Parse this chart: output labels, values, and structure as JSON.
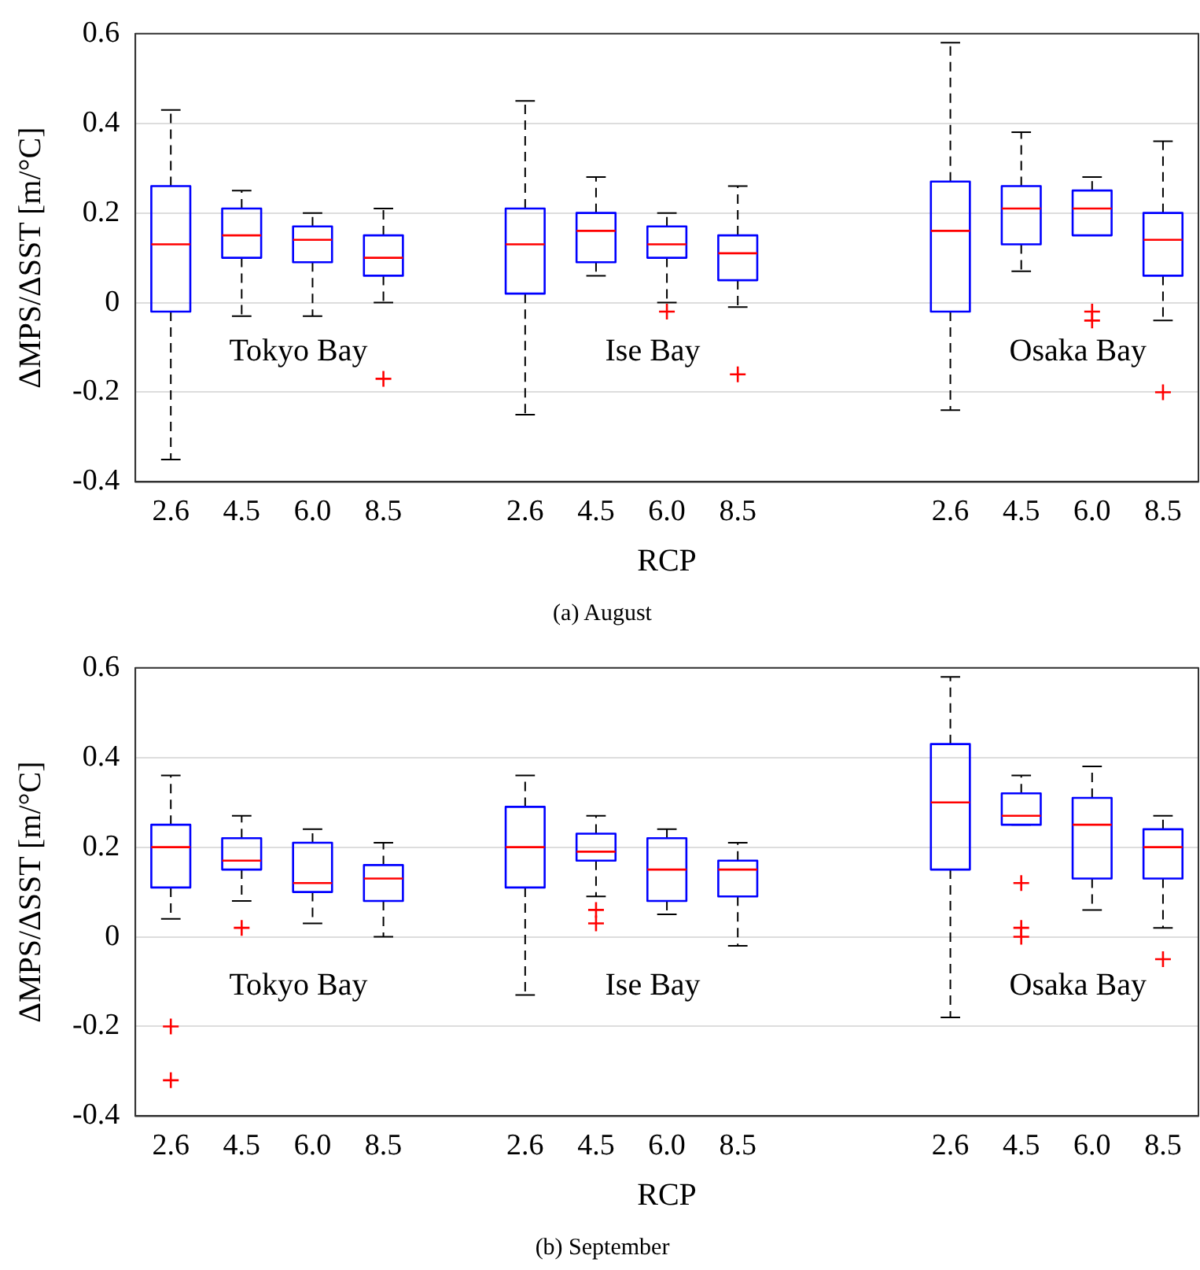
{
  "chart_data": [
    {
      "type": "box",
      "title": "(a) August",
      "xlabel": "RCP",
      "ylabel": "ΔMPS/ΔSST [m/°C]",
      "color": "#0000ff",
      "categories": [
        "2.6",
        "4.5",
        "6.0",
        "8.5",
        null,
        "2.6",
        "4.5",
        "6.0",
        "8.5",
        null,
        null,
        "2.6",
        "4.5",
        "6.0",
        "8.5"
      ],
      "boxes": [
        {
          "low": -0.35,
          "q1": -0.02,
          "median": 0.13,
          "q3": 0.26,
          "high": 0.43
        },
        {
          "low": -0.03,
          "q1": 0.1,
          "median": 0.15,
          "q3": 0.21,
          "high": 0.25
        },
        {
          "low": -0.03,
          "q1": 0.09,
          "median": 0.14,
          "q3": 0.17,
          "high": 0.2
        },
        {
          "low": 0.0,
          "q1": 0.06,
          "median": 0.1,
          "q3": 0.15,
          "high": 0.21,
          "outliers": [
            -0.17
          ]
        },
        null,
        {
          "low": -0.25,
          "q1": 0.02,
          "median": 0.13,
          "q3": 0.21,
          "high": 0.45
        },
        {
          "low": 0.06,
          "q1": 0.09,
          "median": 0.16,
          "q3": 0.2,
          "high": 0.28
        },
        {
          "low": 0.0,
          "q1": 0.1,
          "median": 0.13,
          "q3": 0.17,
          "high": 0.2,
          "outliers": [
            -0.02
          ]
        },
        {
          "low": -0.01,
          "q1": 0.05,
          "median": 0.11,
          "q3": 0.15,
          "high": 0.26,
          "outliers": [
            -0.16
          ]
        },
        null,
        null,
        {
          "low": -0.24,
          "q1": -0.02,
          "median": 0.16,
          "q3": 0.27,
          "high": 0.58
        },
        {
          "low": 0.07,
          "q1": 0.13,
          "median": 0.21,
          "q3": 0.26,
          "high": 0.38
        },
        {
          "low": 0.15,
          "q1": 0.15,
          "median": 0.21,
          "q3": 0.25,
          "high": 0.28,
          "outliers": [
            -0.02,
            -0.04
          ]
        },
        {
          "low": -0.04,
          "q1": 0.06,
          "median": 0.14,
          "q3": 0.2,
          "high": 0.36,
          "outliers": [
            -0.2
          ]
        }
      ],
      "annotations": [
        "Tokyo Bay",
        "Ise Bay",
        "Osaka Bay"
      ],
      "ylim": [
        -0.4,
        0.6
      ],
      "yticks": [
        -0.4,
        -0.2,
        0,
        0.2,
        0.4,
        0.6
      ],
      "grid": "y",
      "legend": false
    },
    {
      "type": "box",
      "title": "(b) September",
      "xlabel": "RCP",
      "ylabel": "ΔMPS/ΔSST [m/°C]",
      "color": "#0000ff",
      "categories": [
        "2.6",
        "4.5",
        "6.0",
        "8.5",
        null,
        "2.6",
        "4.5",
        "6.0",
        "8.5",
        null,
        null,
        "2.6",
        "4.5",
        "6.0",
        "8.5"
      ],
      "boxes": [
        {
          "low": 0.04,
          "q1": 0.11,
          "median": 0.2,
          "q3": 0.25,
          "high": 0.36,
          "outliers": [
            -0.2,
            -0.32
          ]
        },
        {
          "low": 0.08,
          "q1": 0.15,
          "median": 0.17,
          "q3": 0.22,
          "high": 0.27,
          "outliers": [
            0.02
          ]
        },
        {
          "low": 0.03,
          "q1": 0.1,
          "median": 0.12,
          "q3": 0.21,
          "high": 0.24
        },
        {
          "low": 0.0,
          "q1": 0.08,
          "median": 0.13,
          "q3": 0.16,
          "high": 0.21
        },
        null,
        {
          "low": -0.13,
          "q1": 0.11,
          "median": 0.2,
          "q3": 0.29,
          "high": 0.36
        },
        {
          "low": 0.09,
          "q1": 0.17,
          "median": 0.19,
          "q3": 0.23,
          "high": 0.27,
          "outliers": [
            0.06,
            0.03
          ]
        },
        {
          "low": 0.05,
          "q1": 0.08,
          "median": 0.15,
          "q3": 0.22,
          "high": 0.24
        },
        {
          "low": -0.02,
          "q1": 0.09,
          "median": 0.15,
          "q3": 0.17,
          "high": 0.21
        },
        null,
        null,
        {
          "low": -0.18,
          "q1": 0.15,
          "median": 0.3,
          "q3": 0.43,
          "high": 0.58
        },
        {
          "low": 0.25,
          "q1": 0.25,
          "median": 0.27,
          "q3": 0.32,
          "high": 0.36,
          "outliers": [
            0.12,
            0.02,
            0.0
          ]
        },
        {
          "low": 0.06,
          "q1": 0.13,
          "median": 0.25,
          "q3": 0.31,
          "high": 0.38
        },
        {
          "low": 0.02,
          "q1": 0.13,
          "median": 0.2,
          "q3": 0.24,
          "high": 0.27,
          "outliers": [
            -0.05
          ]
        }
      ],
      "annotations": [
        "Tokyo Bay",
        "Ise Bay",
        "Osaka Bay"
      ],
      "ylim": [
        -0.4,
        0.6
      ],
      "yticks": [
        -0.4,
        -0.2,
        0,
        0.2,
        0.4,
        0.6
      ],
      "grid": "y",
      "legend": false
    }
  ]
}
